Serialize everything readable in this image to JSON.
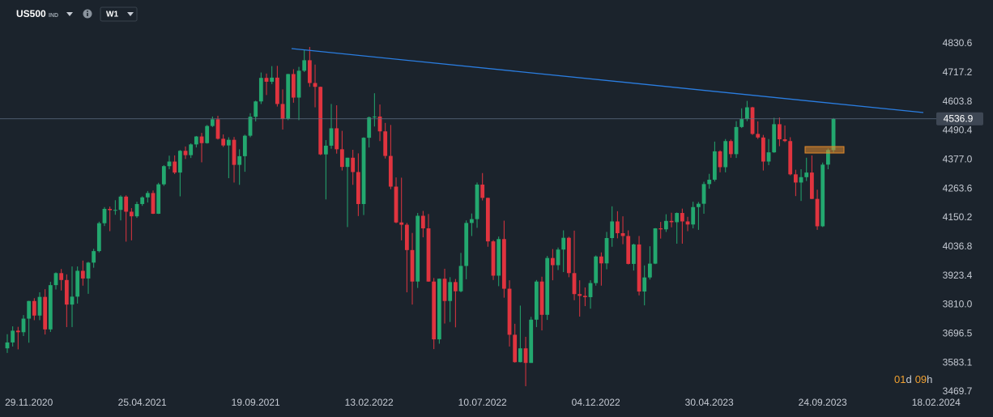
{
  "header": {
    "symbol": "US500",
    "market": "IND",
    "timeframe": "W1"
  },
  "chart_data": {
    "type": "candlestick",
    "categories": [
      null,
      null,
      null,
      null,
      "29.11.2020",
      null,
      null,
      null,
      null,
      null,
      null,
      null,
      null,
      null,
      null,
      null,
      null,
      null,
      null,
      null,
      null,
      null,
      null,
      null,
      null,
      "25.04.2021",
      null,
      null,
      null,
      null,
      null,
      null,
      null,
      null,
      null,
      null,
      null,
      null,
      null,
      null,
      null,
      null,
      null,
      null,
      null,
      null,
      "19.09.2021",
      null,
      null,
      null,
      null,
      null,
      null,
      null,
      null,
      null,
      null,
      null,
      null,
      null,
      null,
      null,
      null,
      null,
      null,
      null,
      null,
      "13.02.2022",
      null,
      null,
      null,
      null,
      null,
      null,
      null,
      null,
      null,
      null,
      null,
      null,
      null,
      null,
      null,
      null,
      null,
      null,
      null,
      null,
      "10.07.2022",
      null,
      null,
      null,
      null,
      null,
      null,
      null,
      null,
      null,
      null,
      null,
      null,
      null,
      null,
      null,
      null,
      null,
      null,
      null,
      null,
      "04.12.2022",
      null,
      null,
      null,
      null,
      null,
      null,
      null,
      null,
      null,
      null,
      null,
      null,
      null,
      null,
      null,
      null,
      null,
      null,
      null,
      null,
      "30.04.2023",
      null,
      null,
      null,
      null,
      null,
      null,
      null,
      null,
      null,
      null,
      null,
      null,
      null,
      null,
      null,
      null,
      null,
      null,
      null,
      null,
      "24.09.2023",
      null,
      null,
      null,
      null,
      null,
      null,
      null,
      null,
      null,
      null,
      null,
      null,
      null,
      null,
      null,
      null,
      null,
      null,
      null,
      null,
      "18.02.2024"
    ],
    "open": [
      3640,
      3663,
      3709,
      3703,
      3756,
      3825,
      3768,
      3841,
      3714,
      3887,
      3934,
      3907,
      3811,
      3842,
      3943,
      3913,
      3975,
      4020,
      4129,
      4185,
      4180,
      4181,
      4233,
      4174,
      4156,
      4204,
      4230,
      4247,
      4166,
      4281,
      4352,
      4370,
      4327,
      4412,
      4395,
      4437,
      4468,
      4442,
      4509,
      4535,
      4459,
      4433,
      4455,
      4357,
      4391,
      4471,
      4545,
      4605,
      4697,
      4682,
      4698,
      4595,
      4538,
      4712,
      4620,
      4725,
      4766,
      4677,
      4662,
      4398,
      4432,
      4500,
      4418,
      4349,
      4385,
      4329,
      4204,
      4463,
      4543,
      4546,
      4488,
      4392,
      4272,
      4132,
      4123,
      4024,
      3901,
      4158,
      4109,
      3901,
      3675,
      3912,
      3825,
      3899,
      3863,
      3962,
      4130,
      4145,
      4280,
      4228,
      4058,
      3924,
      4067,
      3873,
      3693,
      3586,
      3640,
      3583,
      3752,
      3901,
      3771,
      3993,
      3965,
      4026,
      4072,
      3934,
      3852,
      3845,
      3840,
      3895,
      3999,
      3972,
      4071,
      4136,
      4090,
      4079,
      3970,
      4046,
      3862,
      3917,
      3971,
      4109,
      4105,
      4138,
      4133,
      4169,
      4136,
      4124,
      4192,
      4205,
      4282,
      4299,
      4410,
      4348,
      4450,
      4399,
      4505,
      4536,
      4582,
      4478,
      4464,
      4370,
      4406,
      4516,
      4457,
      4450,
      4320,
      4288,
      4309,
      4327,
      4224,
      4117,
      4358,
      4415,
      null,
      null,
      null,
      null,
      null,
      null,
      null,
      null,
      null,
      null,
      null,
      null,
      null,
      null,
      null,
      null,
      null,
      null,
      null
    ],
    "high": [
      3695,
      3726,
      3724,
      3770,
      3826,
      3836,
      3859,
      3871,
      3900,
      3937,
      3950,
      3929,
      3960,
      3960,
      3983,
      3978,
      4029,
      4135,
      4192,
      4194,
      4219,
      4238,
      4238,
      4188,
      4213,
      4234,
      4255,
      4257,
      4287,
      4356,
      4393,
      4394,
      4415,
      4429,
      4441,
      4470,
      4482,
      4513,
      4546,
      4549,
      4476,
      4465,
      4466,
      4418,
      4475,
      4559,
      4608,
      4718,
      4714,
      4743,
      4744,
      4652,
      4713,
      4731,
      4740,
      4808,
      4818,
      4749,
      4663,
      4454,
      4595,
      4590,
      4490,
      4385,
      4416,
      4402,
      4465,
      4546,
      4637,
      4593,
      4521,
      4513,
      4308,
      4307,
      4130,
      4091,
      4169,
      4177,
      4165,
      3915,
      3913,
      3951,
      3918,
      3911,
      4013,
      4140,
      4167,
      4288,
      4325,
      4229,
      4063,
      4077,
      4139,
      3906,
      3736,
      3807,
      3685,
      3763,
      3907,
      3920,
      4001,
      4028,
      4034,
      4101,
      4076,
      4100,
      3906,
      3878,
      3906,
      4003,
      4015,
      4095,
      4195,
      4176,
      4156,
      4101,
      4049,
      4079,
      3964,
      4039,
      4110,
      4134,
      4164,
      4170,
      4171,
      4186,
      4154,
      4213,
      4212,
      4291,
      4322,
      4448,
      4414,
      4458,
      4456,
      4528,
      4578,
      4607,
      4584,
      4527,
      4474,
      4458,
      4541,
      4542,
      4511,
      4465,
      4338,
      4340,
      4385,
      4394,
      4260,
      4366,
      4421,
      4540,
      null,
      null,
      null,
      null,
      null,
      null,
      null,
      null,
      null,
      null,
      null,
      null,
      null,
      null,
      null,
      null,
      null,
      null,
      null
    ],
    "low": [
      3622,
      3647,
      3636,
      3688,
      3662,
      3750,
      3750,
      3694,
      3704,
      3870,
      3866,
      3723,
      3723,
      3815,
      3885,
      3853,
      3955,
      4015,
      4118,
      4098,
      4162,
      4140,
      4057,
      4062,
      4150,
      4197,
      4210,
      4165,
      4165,
      4275,
      4340,
      4321,
      4234,
      4380,
      4384,
      4425,
      4367,
      4440,
      4505,
      4456,
      4427,
      4305,
      4288,
      4279,
      4330,
      4465,
      4527,
      4595,
      4630,
      4673,
      4585,
      4495,
      4532,
      4600,
      4532,
      4720,
      4662,
      4582,
      4395,
      4222,
      4420,
      4401,
      4335,
      4114,
      4279,
      4157,
      4161,
      4425,
      4507,
      4450,
      4382,
      4262,
      4129,
      4062,
      3859,
      3811,
      3876,
      4074,
      3900,
      3637,
      3658,
      3737,
      3743,
      3722,
      3859,
      3910,
      4079,
      4111,
      4218,
      4037,
      3907,
      3883,
      3838,
      3647,
      3584,
      3585,
      3492,
      3583,
      3723,
      3710,
      3751,
      3906,
      3946,
      3938,
      3918,
      3828,
      3764,
      3805,
      3795,
      3885,
      3885,
      3949,
      4037,
      4070,
      4047,
      3968,
      3944,
      3847,
      3808,
      3909,
      3969,
      4069,
      4095,
      4113,
      4049,
      4049,
      4098,
      4109,
      4103,
      4166,
      4264,
      4292,
      4328,
      4328,
      4385,
      4384,
      4501,
      4528,
      4474,
      4458,
      4335,
      4356,
      4404,
      4430,
      4446,
      4316,
      4235,
      4216,
      4294,
      4223,
      4103,
      4114,
      4340,
      4406,
      null,
      null,
      null,
      null,
      null,
      null,
      null,
      null,
      null,
      null,
      null,
      null,
      null,
      null,
      null,
      null,
      null,
      null,
      null
    ],
    "close": [
      3663,
      3709,
      3703,
      3756,
      3825,
      3768,
      3841,
      3714,
      3887,
      3934,
      3907,
      3811,
      3842,
      3943,
      3913,
      3975,
      4020,
      4129,
      4185,
      4180,
      4181,
      4233,
      4174,
      4156,
      4204,
      4230,
      4247,
      4166,
      4281,
      4352,
      4370,
      4327,
      4412,
      4395,
      4437,
      4468,
      4442,
      4509,
      4535,
      4459,
      4433,
      4455,
      4357,
      4391,
      4471,
      4545,
      4605,
      4697,
      4682,
      4698,
      4595,
      4538,
      4712,
      4620,
      4725,
      4766,
      4677,
      4662,
      4398,
      4432,
      4500,
      4418,
      4349,
      4385,
      4329,
      4204,
      4463,
      4543,
      4546,
      4488,
      4392,
      4272,
      4132,
      4123,
      4024,
      3901,
      4158,
      4109,
      3901,
      3675,
      3912,
      3825,
      3899,
      3863,
      3962,
      4130,
      4145,
      4280,
      4228,
      4058,
      3924,
      4067,
      3873,
      3693,
      3586,
      3640,
      3583,
      3752,
      3901,
      3771,
      3993,
      3965,
      4026,
      4072,
      3934,
      3852,
      3845,
      3840,
      3895,
      3999,
      3972,
      4071,
      4136,
      4090,
      4079,
      3970,
      4046,
      3862,
      3917,
      3971,
      4109,
      4105,
      4138,
      4133,
      4169,
      4136,
      4124,
      4192,
      4205,
      4282,
      4299,
      4410,
      4348,
      4450,
      4399,
      4505,
      4536,
      4582,
      4478,
      4464,
      4370,
      4406,
      4516,
      4457,
      4450,
      4320,
      4288,
      4309,
      4327,
      4224,
      4117,
      4358,
      4415,
      4536.9,
      null,
      null,
      null,
      null,
      null,
      null,
      null,
      null,
      null,
      null,
      null,
      null,
      null,
      null,
      null,
      null,
      null,
      null,
      null
    ],
    "up_color": "#23a86f",
    "down_color": "#e0343f",
    "ylim": [
      3469.7,
      4906.5
    ],
    "yticks": [
      4830.6,
      4717.2,
      4603.8,
      4490.4,
      {
        "value": 4377,
        "label": "4377.0"
      },
      4263.6,
      4150.2,
      4036.8,
      3923.4,
      {
        "value": 3810,
        "label": "3810.0"
      },
      3696.5,
      3583.1,
      3469.7
    ],
    "last_price": 4536.9
  },
  "countdown": {
    "days": "01",
    "days_unit": "d",
    "hours": "09",
    "hours_unit": "h"
  }
}
